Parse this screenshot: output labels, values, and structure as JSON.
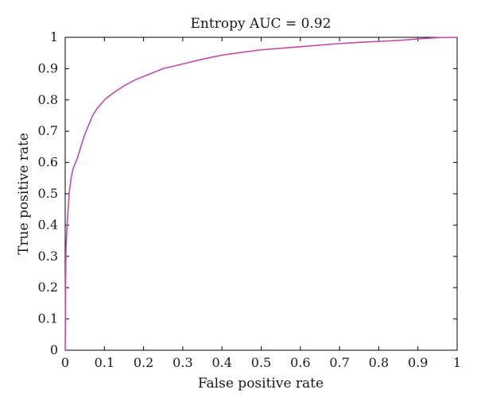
{
  "chart_data": {
    "type": "line",
    "title": "Entropy AUC = 0.92",
    "xlabel": "False positive rate",
    "ylabel": "True positive rate",
    "xlim": [
      0,
      1
    ],
    "ylim": [
      0,
      1
    ],
    "xticks": [
      "0",
      "0.1",
      "0.2",
      "0.3",
      "0.4",
      "0.5",
      "0.6",
      "0.7",
      "0.8",
      "0.9",
      "1"
    ],
    "yticks": [
      "0",
      "0.1",
      "0.2",
      "0.3",
      "0.4",
      "0.5",
      "0.6",
      "0.7",
      "0.8",
      "0.9",
      "1"
    ],
    "grid": false,
    "line_color": "#c04ca8",
    "series": [
      {
        "x": [
          0,
          0.001,
          0.002,
          0.004,
          0.006,
          0.008,
          0.01,
          0.015,
          0.02,
          0.03,
          0.04,
          0.05,
          0.06,
          0.07,
          0.08,
          0.1,
          0.12,
          0.15,
          0.18,
          0.2,
          0.25,
          0.3,
          0.35,
          0.4,
          0.45,
          0.5,
          0.55,
          0.6,
          0.65,
          0.7,
          0.75,
          0.8,
          0.85,
          0.9,
          0.95,
          1.0
        ],
        "y": [
          0,
          0.2,
          0.32,
          0.38,
          0.42,
          0.46,
          0.5,
          0.55,
          0.58,
          0.61,
          0.65,
          0.69,
          0.72,
          0.75,
          0.77,
          0.8,
          0.82,
          0.845,
          0.865,
          0.875,
          0.9,
          0.915,
          0.93,
          0.943,
          0.952,
          0.96,
          0.965,
          0.97,
          0.975,
          0.98,
          0.984,
          0.987,
          0.99,
          0.995,
          0.999,
          1.0
        ]
      }
    ]
  }
}
